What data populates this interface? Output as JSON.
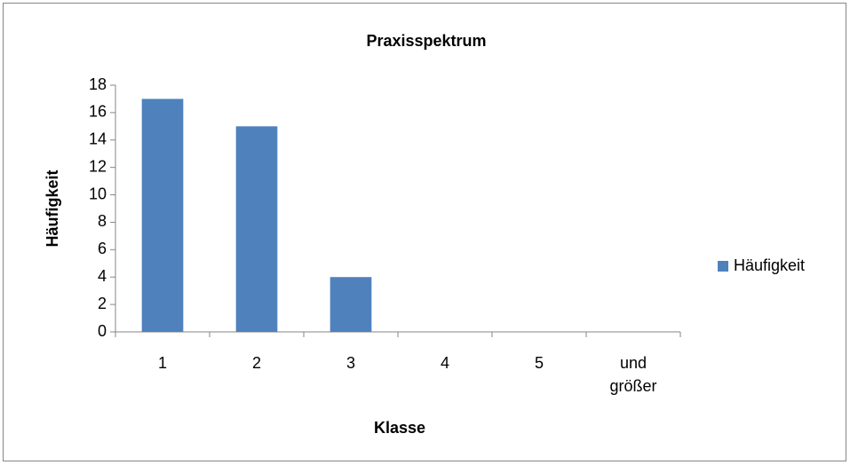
{
  "chart_data": {
    "type": "bar",
    "title": "Praxisspektrum",
    "categories": [
      "1",
      "2",
      "3",
      "4",
      "5",
      "und größer"
    ],
    "series": [
      {
        "name": "Häufigkeit",
        "color": "#4f81bd",
        "values": [
          17,
          15,
          4,
          0,
          0,
          0
        ]
      }
    ],
    "xlabel": "Klasse",
    "ylabel": "Häufigkeit",
    "ylim": [
      0,
      18
    ],
    "yticks": [
      0,
      2,
      4,
      6,
      8,
      10,
      12,
      14,
      16,
      18
    ],
    "grid": false,
    "legend": "right"
  }
}
